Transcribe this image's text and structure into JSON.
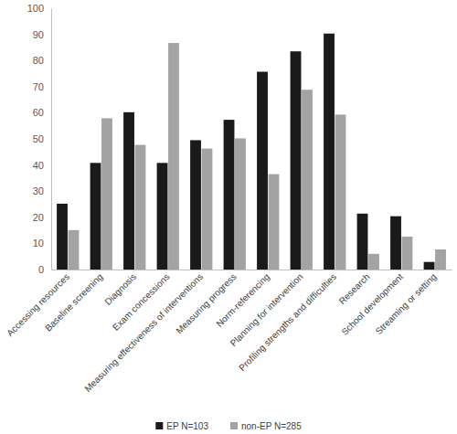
{
  "chart_data": {
    "type": "bar",
    "categories": [
      "Accessing resources",
      "Baseline screening",
      "Diagnosis",
      "Exam concessions",
      "Measuring effectiveness of interventions",
      "Measuring progress",
      "Norm-referencing",
      "Planning for intervention",
      "Profiling strengths and difficulties",
      "Research",
      "School development",
      "Streaming or setting"
    ],
    "series": [
      {
        "name": "EP N=103",
        "color": "#1a1a1a",
        "values": [
          25.2,
          40.8,
          60.2,
          40.8,
          49.5,
          57.3,
          75.7,
          83.5,
          90.3,
          21.4,
          20.4,
          2.9
        ]
      },
      {
        "name": "non-EP N=285",
        "color": "#a3a3a3",
        "values": [
          15.1,
          57.9,
          47.7,
          86.7,
          46.3,
          50.2,
          36.5,
          68.8,
          59.3,
          6.0,
          12.6,
          7.7
        ]
      }
    ],
    "ylim": [
      0,
      100
    ],
    "yticks": [
      0,
      10,
      20,
      30,
      40,
      50,
      60,
      70,
      80,
      90,
      100
    ],
    "grid": false,
    "legend": "bottom"
  }
}
